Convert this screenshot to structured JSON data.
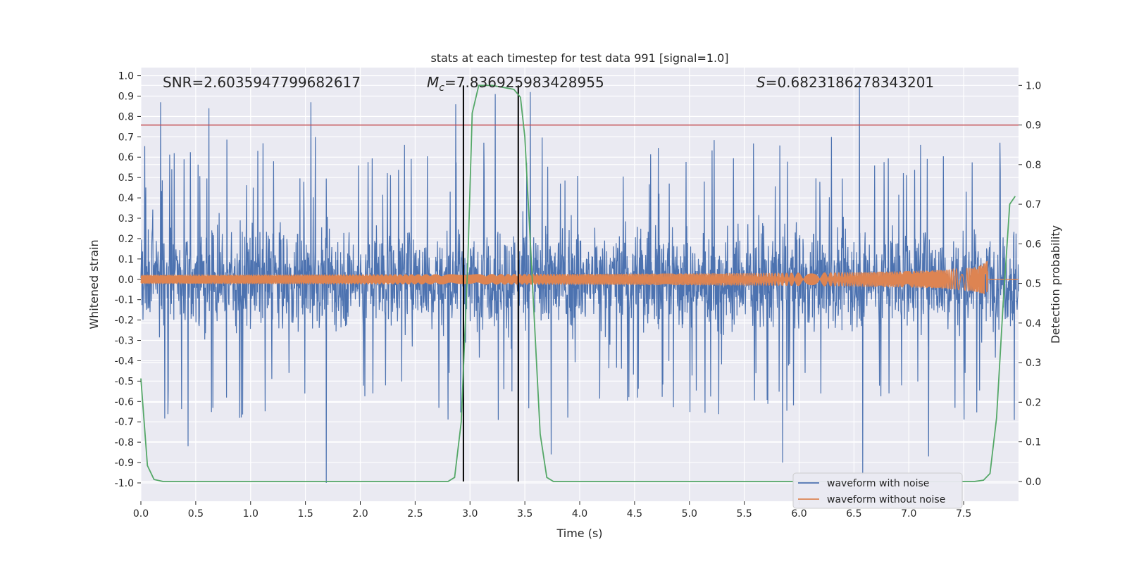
{
  "chart_data": {
    "type": "line",
    "title": "stats at each timestep for test data 991 [signal=1.0]",
    "xlabel": "Time (s)",
    "ylabel_left": "Whitened strain",
    "ylabel_right": "Detection probability",
    "xlim": [
      0.0,
      8.0
    ],
    "ylim_left": [
      -1.09,
      1.04
    ],
    "ylim_right": [
      -0.05,
      1.045
    ],
    "x_ticks": [
      "0.0",
      "0.5",
      "1.0",
      "1.5",
      "2.0",
      "2.5",
      "3.0",
      "3.5",
      "4.0",
      "4.5",
      "5.0",
      "5.5",
      "6.0",
      "6.5",
      "7.0",
      "7.5"
    ],
    "y_left_ticks": [
      "1.0",
      "0.9",
      "0.8",
      "0.7",
      "0.6",
      "0.5",
      "0.4",
      "0.3",
      "0.2",
      "0.1",
      "0.0",
      "-0.1",
      "-0.2",
      "-0.3",
      "-0.4",
      "-0.5",
      "-0.6",
      "-0.7",
      "-0.8",
      "-0.9",
      "-1.0"
    ],
    "y_right_ticks": [
      "1.0",
      "0.9",
      "0.8",
      "0.7",
      "0.6",
      "0.5",
      "0.4",
      "0.3",
      "0.2",
      "0.1",
      "0.0"
    ],
    "annotations": {
      "snr": "SNR=2.6035947799682617",
      "mc_symbol": "M",
      "mc_sub": "c",
      "mc_value": "=7.836925983428955",
      "s_symbol": "S",
      "s_value": "=0.6823186278343201"
    },
    "threshold": {
      "value": 0.9,
      "axis": "right",
      "color": "#c44e52"
    },
    "vertical_markers": {
      "x": [
        2.94,
        3.44
      ],
      "color": "#000000"
    },
    "series": [
      {
        "name": "waveform with noise",
        "color": "#4c72b0",
        "axis": "left",
        "description": "whitened noisy strain, envelope roughly ±0.5 with spikes up to 0.97 and down to -1.0",
        "spikes": [
          [
            0.18,
            0.87
          ],
          [
            0.62,
            0.84
          ],
          [
            1.55,
            0.87
          ],
          [
            2.87,
            0.86
          ],
          [
            3.23,
            0.91
          ],
          [
            3.55,
            0.92
          ],
          [
            6.55,
            0.97
          ],
          [
            0.43,
            -0.82
          ],
          [
            1.69,
            -1.0
          ],
          [
            3.74,
            -0.86
          ],
          [
            5.85,
            -0.9
          ],
          [
            6.58,
            -0.96
          ],
          [
            7.18,
            -0.87
          ]
        ]
      },
      {
        "name": "waveform without noise",
        "color": "#dd8452",
        "axis": "left",
        "description": "chirp signal growing to about ±0.1 at 7.72 s then flat at 0",
        "chirp_end": 7.72,
        "peak_amplitude": 0.1
      },
      {
        "name": "detection probability",
        "color": "#55a868",
        "axis": "right",
        "points": [
          [
            0.0,
            0.26
          ],
          [
            0.06,
            0.04
          ],
          [
            0.12,
            0.005
          ],
          [
            0.2,
            0.0
          ],
          [
            2.8,
            0.0
          ],
          [
            2.86,
            0.01
          ],
          [
            2.92,
            0.15
          ],
          [
            2.98,
            0.55
          ],
          [
            3.02,
            0.93
          ],
          [
            3.08,
            1.0
          ],
          [
            3.2,
            1.0
          ],
          [
            3.4,
            0.99
          ],
          [
            3.46,
            0.97
          ],
          [
            3.5,
            0.87
          ],
          [
            3.56,
            0.55
          ],
          [
            3.64,
            0.12
          ],
          [
            3.7,
            0.01
          ],
          [
            3.76,
            0.0
          ],
          [
            7.6,
            0.0
          ],
          [
            7.68,
            0.003
          ],
          [
            7.74,
            0.02
          ],
          [
            7.8,
            0.16
          ],
          [
            7.86,
            0.45
          ],
          [
            7.92,
            0.7
          ],
          [
            7.97,
            0.72
          ]
        ]
      }
    ],
    "legend": {
      "position": "lower-right",
      "entries": [
        "waveform with noise",
        "waveform without noise"
      ]
    }
  }
}
